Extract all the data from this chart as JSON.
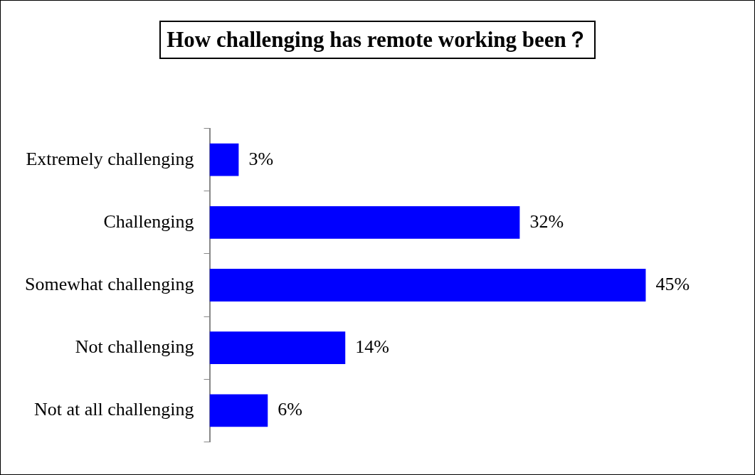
{
  "chart_data": {
    "type": "bar",
    "orientation": "horizontal",
    "title": "How challenging has remote working been？",
    "categories": [
      "Extremely challenging",
      "Challenging",
      "Somewhat challenging",
      "Not challenging",
      "Not at all challenging"
    ],
    "values": [
      3,
      32,
      45,
      14,
      6
    ],
    "value_labels": [
      "3%",
      "32%",
      "45%",
      "14%",
      "6%"
    ],
    "color": "#0000ff",
    "legend": false,
    "tick_labels": "y"
  }
}
